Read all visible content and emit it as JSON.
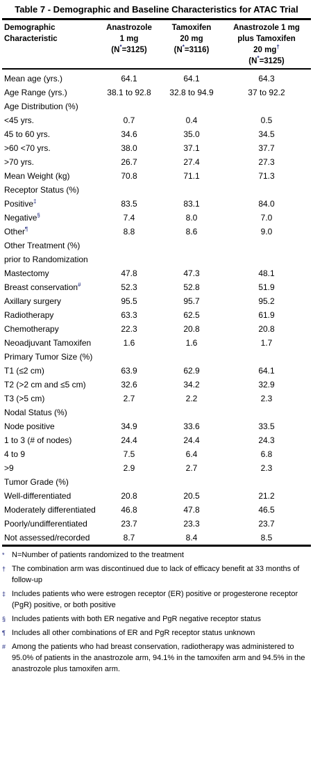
{
  "title": "Table 7 - Demographic and Baseline Characteristics for ATAC Trial",
  "header": {
    "label": [
      "Demographic",
      "Characteristic"
    ],
    "columns": [
      {
        "lines": [
          "Anastrozole",
          "1 mg"
        ],
        "mark": null,
        "n_open": "(N",
        "n_mark": "*",
        "n_rest": "=3125)"
      },
      {
        "lines": [
          "Tamoxifen",
          "20 mg"
        ],
        "mark": null,
        "n_open": "(N",
        "n_mark": "*",
        "n_rest": "=3116)"
      },
      {
        "lines": [
          "Anastrozole 1 mg",
          "plus Tamoxifen",
          "20 mg"
        ],
        "mark": "†",
        "n_open": "(N",
        "n_mark": "*",
        "n_rest": "=3125)"
      }
    ]
  },
  "table": {
    "rows": [
      {
        "label": "Mean age (yrs.)",
        "mark": null,
        "values": [
          "64.1",
          "64.1",
          "64.3"
        ]
      },
      {
        "label": "Age Range (yrs.)",
        "mark": null,
        "values": [
          "38.1 to 92.8",
          "32.8 to 94.9",
          "37 to 92.2"
        ]
      },
      {
        "label": "Age Distribution (%)",
        "mark": null,
        "values": []
      },
      {
        "label": "<45 yrs.",
        "mark": null,
        "values": [
          "0.7",
          "0.4",
          "0.5"
        ]
      },
      {
        "label": "45 to 60 yrs.",
        "mark": null,
        "values": [
          "34.6",
          "35.0",
          "34.5"
        ]
      },
      {
        "label": ">60 <70 yrs.",
        "mark": null,
        "values": [
          "38.0",
          "37.1",
          "37.7"
        ]
      },
      {
        "label": ">70 yrs.",
        "mark": null,
        "values": [
          "26.7",
          "27.4",
          "27.3"
        ]
      },
      {
        "label": "Mean Weight (kg)",
        "mark": null,
        "values": [
          "70.8",
          "71.1",
          "71.3"
        ]
      },
      {
        "label": "Receptor Status (%)",
        "mark": null,
        "values": []
      },
      {
        "label": "Positive",
        "mark": "‡",
        "values": [
          "83.5",
          "83.1",
          "84.0"
        ]
      },
      {
        "label": "Negative",
        "mark": "§",
        "values": [
          "7.4",
          "8.0",
          "7.0"
        ]
      },
      {
        "label": "Other",
        "mark": "¶",
        "values": [
          "8.8",
          "8.6",
          "9.0"
        ]
      },
      {
        "label": "Other Treatment (%) prior to Randomization",
        "mark": null,
        "values": []
      },
      {
        "label": "Mastectomy",
        "mark": null,
        "values": [
          "47.8",
          "47.3",
          "48.1"
        ]
      },
      {
        "label": "Breast conservation",
        "mark": "#",
        "values": [
          "52.3",
          "52.8",
          "51.9"
        ]
      },
      {
        "label": "Axillary surgery",
        "mark": null,
        "values": [
          "95.5",
          "95.7",
          "95.2"
        ]
      },
      {
        "label": "Radiotherapy",
        "mark": null,
        "values": [
          "63.3",
          "62.5",
          "61.9"
        ]
      },
      {
        "label": "Chemotherapy",
        "mark": null,
        "values": [
          "22.3",
          "20.8",
          "20.8"
        ]
      },
      {
        "label": "Neoadjuvant Tamoxifen",
        "mark": null,
        "values": [
          "1.6",
          "1.6",
          "1.7"
        ]
      },
      {
        "label": "Primary Tumor Size (%)",
        "mark": null,
        "values": []
      },
      {
        "label": "T1 (≤2 cm)",
        "mark": null,
        "values": [
          "63.9",
          "62.9",
          "64.1"
        ]
      },
      {
        "label": "T2 (>2 cm and ≤5 cm)",
        "mark": null,
        "values": [
          "32.6",
          "34.2",
          "32.9"
        ]
      },
      {
        "label": "T3 (>5 cm)",
        "mark": null,
        "values": [
          "2.7",
          "2.2",
          "2.3"
        ]
      },
      {
        "label": "Nodal Status (%)",
        "mark": null,
        "values": []
      },
      {
        "label": "Node positive",
        "mark": null,
        "values": [
          "34.9",
          "33.6",
          "33.5"
        ]
      },
      {
        "label": "1 to 3 (# of nodes)",
        "mark": null,
        "values": [
          "24.4",
          "24.4",
          "24.3"
        ]
      },
      {
        "label": "4 to 9",
        "mark": null,
        "values": [
          "7.5",
          "6.4",
          "6.8"
        ]
      },
      {
        "label": ">9",
        "mark": null,
        "values": [
          "2.9",
          "2.7",
          "2.3"
        ]
      },
      {
        "label": "Tumor Grade (%)",
        "mark": null,
        "values": []
      },
      {
        "label": "Well-differentiated",
        "mark": null,
        "values": [
          "20.8",
          "20.5",
          "21.2"
        ]
      },
      {
        "label": "Moderately differentiated",
        "mark": null,
        "values": [
          "46.8",
          "47.8",
          "46.5"
        ]
      },
      {
        "label": "Poorly/undifferentiated",
        "mark": null,
        "values": [
          "23.7",
          "23.3",
          "23.7"
        ]
      },
      {
        "label": "Not assessed/recorded",
        "mark": null,
        "values": [
          "8.7",
          "8.4",
          "8.5"
        ]
      }
    ]
  },
  "footnotes": [
    {
      "mark": "*",
      "text": "N=Number of patients randomized to the treatment"
    },
    {
      "mark": "†",
      "text": "The combination arm was discontinued due to lack of efficacy benefit at 33 months of follow-up"
    },
    {
      "mark": "‡",
      "text": "Includes patients who were estrogen receptor (ER) positive or progesterone receptor (PgR) positive, or both positive"
    },
    {
      "mark": "§",
      "text": "Includes patients with both ER negative and PgR negative receptor status"
    },
    {
      "mark": "¶",
      "text": "Includes all other combinations of ER and PgR receptor status unknown"
    },
    {
      "mark": "#",
      "text": "Among the patients who had breast conservation, radiotherapy was administered to 95.0% of patients in the anastrozole arm, 94.1% in the tamoxifen arm and 94.5% in the anastrozole plus tamoxifen arm."
    }
  ]
}
